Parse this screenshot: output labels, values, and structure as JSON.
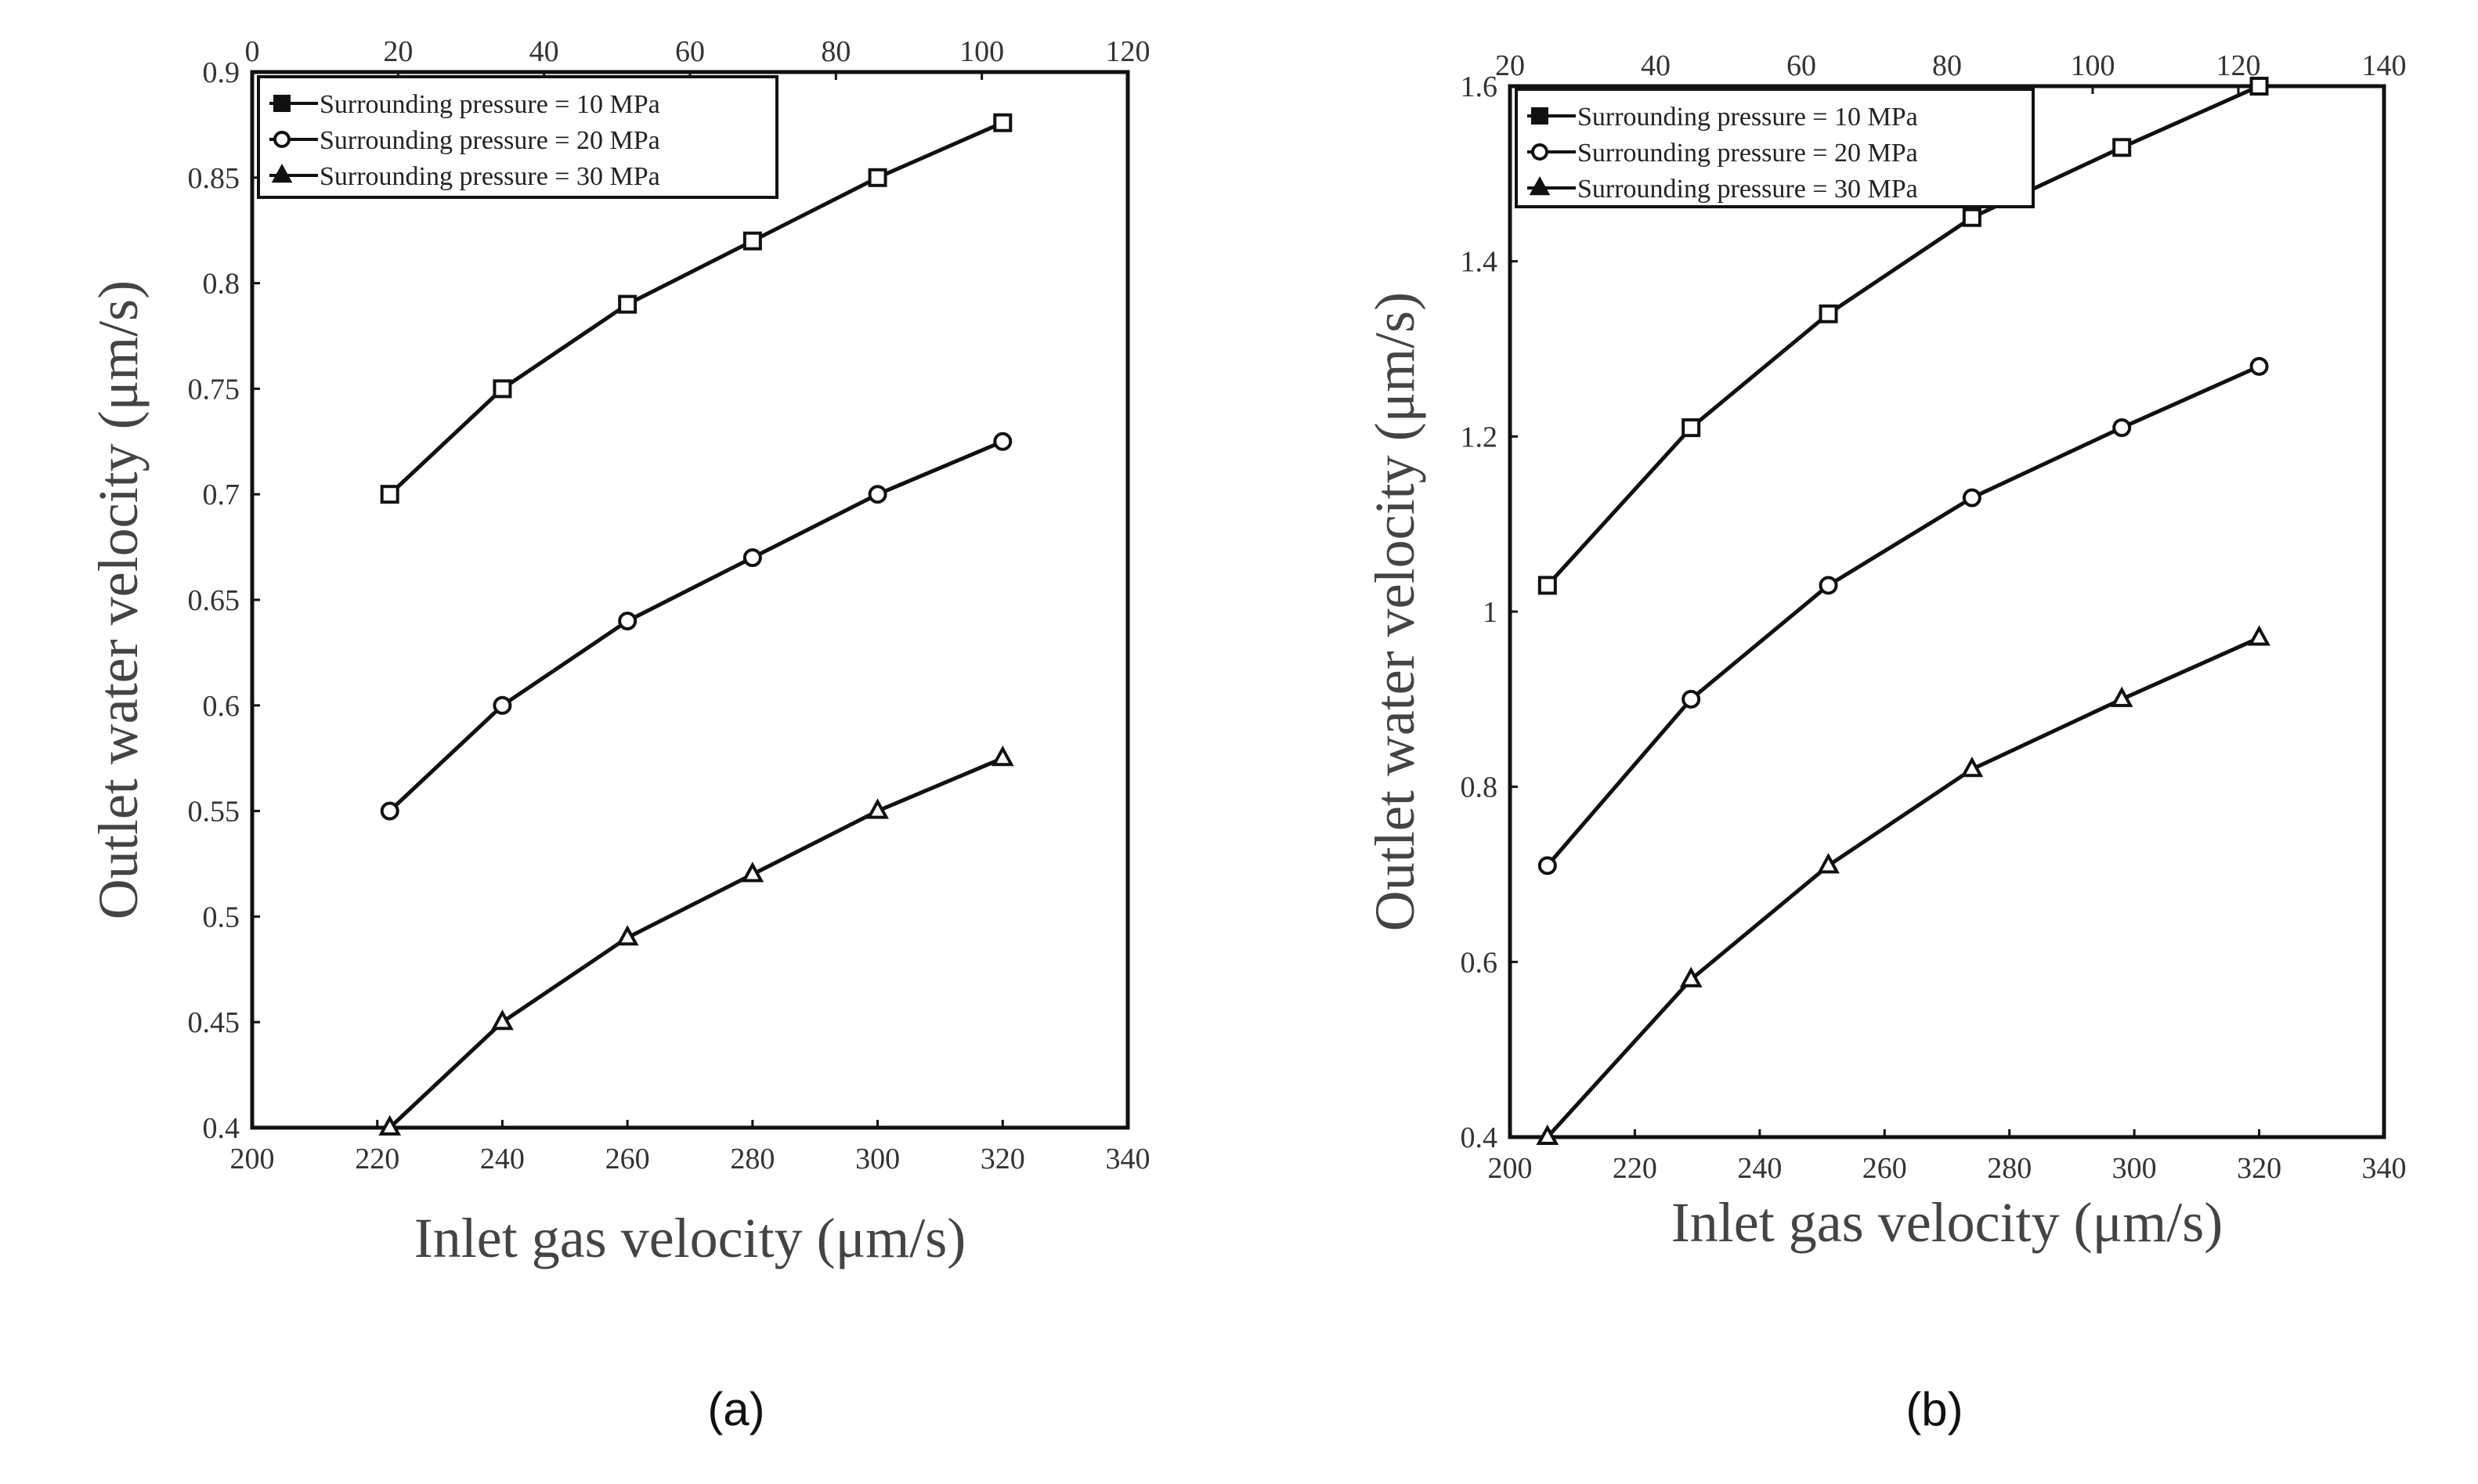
{
  "chart_data": [
    {
      "type": "line",
      "panel_label": "(a)",
      "xlabel": "Inlet gas velocity (μm/s)",
      "ylabel": "Outlet water velocity (μm/s)",
      "xlim": [
        200,
        340
      ],
      "ylim": [
        0.4,
        0.9
      ],
      "x_ticks": [
        "200",
        "220",
        "240",
        "260",
        "280",
        "300",
        "320",
        "340"
      ],
      "y_ticks": [
        "0.4",
        "0.45",
        "0.5",
        "0.55",
        "0.6",
        "0.65",
        "0.7",
        "0.75",
        "0.8",
        "0.85",
        "0.9"
      ],
      "top_axis": {
        "range": [
          0,
          120
        ],
        "ticks": [
          "0",
          "20",
          "40",
          "60",
          "80",
          "100",
          "120"
        ]
      },
      "legend_position": "top-left",
      "series": [
        {
          "name": "Surrounding pressure = 10 MPa",
          "marker": "square",
          "x": [
            222,
            240,
            260,
            280,
            300,
            320
          ],
          "y": [
            0.7,
            0.75,
            0.79,
            0.82,
            0.85,
            0.876
          ]
        },
        {
          "name": "Surrounding pressure = 20 MPa",
          "marker": "circle",
          "x": [
            222,
            240,
            260,
            280,
            300,
            320
          ],
          "y": [
            0.55,
            0.6,
            0.64,
            0.67,
            0.7,
            0.725
          ]
        },
        {
          "name": "Surrounding pressure = 30 MPa",
          "marker": "triangle",
          "x": [
            222,
            240,
            260,
            280,
            300,
            320
          ],
          "y": [
            0.4,
            0.45,
            0.49,
            0.52,
            0.55,
            0.575
          ]
        }
      ]
    },
    {
      "type": "line",
      "panel_label": "(b)",
      "xlabel": "Inlet gas velocity (μm/s)",
      "ylabel": "Outlet water velocity (μm/s)",
      "xlim": [
        200,
        340
      ],
      "ylim": [
        0.4,
        1.6
      ],
      "x_ticks": [
        "200",
        "220",
        "240",
        "260",
        "280",
        "300",
        "320",
        "340"
      ],
      "y_ticks": [
        "0.4",
        "0.6",
        "0.8",
        "1",
        "1.2",
        "1.4",
        "1.6"
      ],
      "top_axis": {
        "range": [
          20,
          140
        ],
        "ticks": [
          "20",
          "40",
          "60",
          "80",
          "100",
          "120",
          "140"
        ]
      },
      "legend_position": "top-left",
      "series": [
        {
          "name": "Surrounding pressure = 10 MPa",
          "marker": "square",
          "x": [
            206,
            229,
            251,
            274,
            298,
            320
          ],
          "y": [
            1.03,
            1.21,
            1.34,
            1.45,
            1.53,
            1.6
          ]
        },
        {
          "name": "Surrounding pressure = 20 MPa",
          "marker": "circle",
          "x": [
            206,
            229,
            251,
            274,
            298,
            320
          ],
          "y": [
            0.71,
            0.9,
            1.03,
            1.13,
            1.21,
            1.28
          ]
        },
        {
          "name": "Surrounding pressure = 30 MPa",
          "marker": "triangle",
          "x": [
            206,
            229,
            251,
            274,
            298,
            320
          ],
          "y": [
            0.4,
            0.58,
            0.71,
            0.82,
            0.9,
            0.97
          ]
        }
      ]
    }
  ]
}
